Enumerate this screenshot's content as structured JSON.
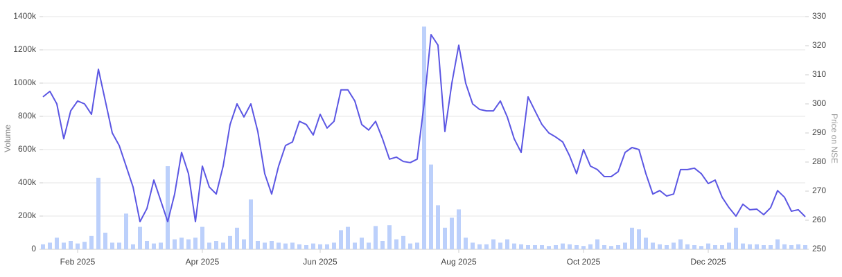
{
  "chart_data": {
    "type": "combo",
    "ylabel": "Volume",
    "y2label": "Price on NSE",
    "categories": [
      null,
      null,
      null,
      null,
      null,
      "Feb 2025",
      null,
      null,
      null,
      null,
      null,
      null,
      null,
      null,
      null,
      null,
      null,
      null,
      null,
      null,
      null,
      null,
      null,
      "Apr 2025",
      null,
      null,
      null,
      null,
      null,
      null,
      null,
      null,
      null,
      null,
      null,
      null,
      null,
      null,
      null,
      null,
      "Jun 2025",
      null,
      null,
      null,
      null,
      null,
      null,
      null,
      null,
      null,
      null,
      null,
      null,
      null,
      null,
      null,
      null,
      null,
      null,
      null,
      "Aug 2025",
      null,
      null,
      null,
      null,
      null,
      null,
      null,
      null,
      null,
      null,
      null,
      null,
      null,
      null,
      null,
      null,
      null,
      "Oct 2025",
      null,
      null,
      null,
      null,
      null,
      null,
      null,
      null,
      null,
      null,
      null,
      null,
      null,
      null,
      null,
      null,
      null,
      "Dec 2025",
      null,
      null,
      null,
      null,
      null,
      null,
      null,
      null,
      null,
      null,
      null,
      null,
      null,
      null
    ],
    "series": [
      {
        "type": "bar",
        "color": "#bcd0fb",
        "values": [
          30000,
          40000,
          70000,
          40000,
          50000,
          35000,
          45000,
          80000,
          430000,
          100000,
          40000,
          40000,
          215000,
          30000,
          135000,
          50000,
          35000,
          40000,
          500000,
          60000,
          70000,
          60000,
          70000,
          135000,
          40000,
          50000,
          40000,
          80000,
          130000,
          60000,
          300000,
          50000,
          40000,
          50000,
          40000,
          35000,
          40000,
          30000,
          25000,
          35000,
          30000,
          30000,
          40000,
          115000,
          135000,
          40000,
          70000,
          40000,
          140000,
          50000,
          145000,
          60000,
          80000,
          35000,
          40000,
          1340000,
          510000,
          265000,
          130000,
          190000,
          240000,
          70000,
          40000,
          30000,
          30000,
          60000,
          40000,
          60000,
          35000,
          30000,
          25000,
          25000,
          25000,
          20000,
          25000,
          35000,
          30000,
          25000,
          20000,
          30000,
          60000,
          25000,
          20000,
          25000,
          40000,
          130000,
          120000,
          70000,
          40000,
          30000,
          25000,
          40000,
          60000,
          30000,
          25000,
          20000,
          35000,
          25000,
          25000,
          40000,
          130000,
          35000,
          30000,
          30000,
          25000,
          25000,
          60000,
          30000,
          25000,
          30000,
          25000
        ]
      },
      {
        "type": "line",
        "axis": "y2",
        "color": "#5b56e3",
        "values": [
          302.4,
          304.3,
          300,
          288,
          297.6,
          301,
          300,
          296.4,
          311.9,
          301,
          290,
          285.7,
          278.6,
          271.4,
          259.5,
          264,
          273.8,
          266.7,
          259.5,
          269,
          283.3,
          276,
          259.5,
          278.6,
          271.4,
          269,
          278.6,
          292.9,
          300,
          295.5,
          300,
          290.5,
          276,
          269,
          278.6,
          285.7,
          286.9,
          294,
          292.9,
          289.3,
          296.4,
          291.7,
          294,
          304.8,
          304.8,
          301,
          292.9,
          291,
          294,
          288,
          281,
          281.7,
          280.2,
          279.8,
          281,
          300,
          323.8,
          320.2,
          290.5,
          307.1,
          320.2,
          307.1,
          300,
          298.1,
          297.6,
          297.6,
          301,
          295.5,
          288,
          283.3,
          302.4,
          297.6,
          292.9,
          290,
          288.6,
          286.9,
          282.1,
          276,
          284.3,
          278.6,
          277.4,
          275,
          275,
          276.7,
          283.3,
          285,
          284.3,
          276,
          269,
          270.2,
          268.3,
          269,
          277.4,
          277.4,
          277.9,
          276,
          272.6,
          273.8,
          267.9,
          264.3,
          261.4,
          265.5,
          263.6,
          263.8,
          261.9,
          264.3,
          270.2,
          267.9,
          263.1,
          263.6,
          261.2
        ]
      }
    ],
    "ylim": [
      0,
      1400000
    ],
    "yticks": [
      0,
      {
        "value": 200000,
        "label": "200k"
      },
      {
        "value": 400000,
        "label": "400k"
      },
      {
        "value": 600000,
        "label": "600k"
      },
      {
        "value": 800000,
        "label": "800k"
      },
      {
        "value": 1000000,
        "label": "1000k"
      },
      {
        "value": 1200000,
        "label": "1200k"
      },
      {
        "value": 1400000,
        "label": "1400k"
      }
    ],
    "y2lim": [
      250,
      330
    ],
    "y2ticks": [
      250,
      260,
      270,
      280,
      290,
      300,
      310,
      320,
      330
    ],
    "grid": true
  }
}
